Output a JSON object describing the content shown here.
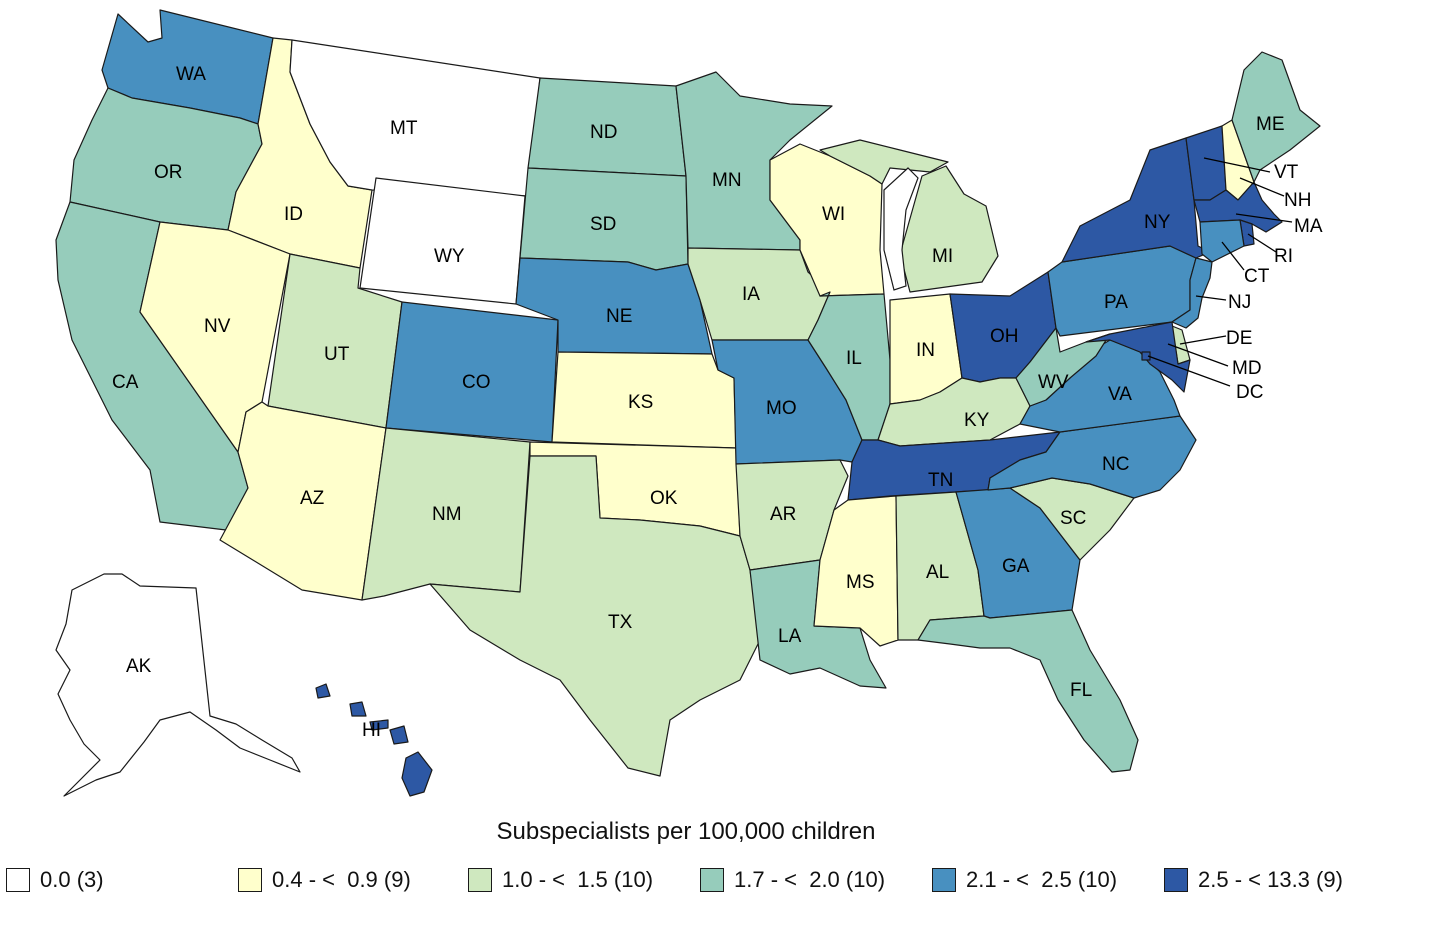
{
  "title": "Subspecialists per 100,000 children",
  "colors": {
    "c0": "#ffffff",
    "c1": "#ffffcc",
    "c2": "#cfe8bf",
    "c3": "#96ccbb",
    "c4": "#4890c0",
    "c5": "#2d58a4"
  },
  "legend": [
    {
      "label": "0.0 (3)",
      "color": "#ffffff"
    },
    {
      "label": "0.4 - <  0.9 (9)",
      "color": "#ffffcc"
    },
    {
      "label": "1.0 - <  1.5 (10)",
      "color": "#cfe8bf"
    },
    {
      "label": "1.7 - <  2.0 (10)",
      "color": "#96ccbb"
    },
    {
      "label": "2.1 - <  2.5 (10)",
      "color": "#4890c0"
    },
    {
      "label": "2.5 - < 13.3 (9)",
      "color": "#2d58a4"
    }
  ],
  "states": {
    "WA": {
      "label": "WA",
      "class": "2.1 - < 2.5"
    },
    "OR": {
      "label": "OR",
      "class": "1.7 - < 2.0"
    },
    "CA": {
      "label": "CA",
      "class": "1.7 - < 2.0"
    },
    "ID": {
      "label": "ID",
      "class": "0.4 - < 0.9"
    },
    "NV": {
      "label": "NV",
      "class": "0.4 - < 0.9"
    },
    "MT": {
      "label": "MT",
      "class": "0.0"
    },
    "WY": {
      "label": "WY",
      "class": "0.0"
    },
    "UT": {
      "label": "UT",
      "class": "1.0 - < 1.5"
    },
    "AZ": {
      "label": "AZ",
      "class": "0.4 - < 0.9"
    },
    "CO": {
      "label": "CO",
      "class": "2.1 - < 2.5"
    },
    "NM": {
      "label": "NM",
      "class": "1.0 - < 1.5"
    },
    "ND": {
      "label": "ND",
      "class": "1.7 - < 2.0"
    },
    "SD": {
      "label": "SD",
      "class": "1.7 - < 2.0"
    },
    "NE": {
      "label": "NE",
      "class": "2.1 - < 2.5"
    },
    "KS": {
      "label": "KS",
      "class": "0.4 - < 0.9"
    },
    "OK": {
      "label": "OK",
      "class": "0.4 - < 0.9"
    },
    "TX": {
      "label": "TX",
      "class": "1.0 - < 1.5"
    },
    "MN": {
      "label": "MN",
      "class": "1.7 - < 2.0"
    },
    "IA": {
      "label": "IA",
      "class": "1.0 - < 1.5"
    },
    "MO": {
      "label": "MO",
      "class": "2.1 - < 2.5"
    },
    "AR": {
      "label": "AR",
      "class": "1.0 - < 1.5"
    },
    "LA": {
      "label": "LA",
      "class": "1.7 - < 2.0"
    },
    "WI": {
      "label": "WI",
      "class": "0.4 - < 0.9"
    },
    "IL": {
      "label": "IL",
      "class": "1.7 - < 2.0"
    },
    "MS": {
      "label": "MS",
      "class": "0.4 - < 0.9"
    },
    "MI": {
      "label": "MI",
      "class": "1.0 - < 1.5"
    },
    "IN": {
      "label": "IN",
      "class": "0.4 - < 0.9"
    },
    "OH": {
      "label": "OH",
      "class": "2.5 - < 13.3"
    },
    "KY": {
      "label": "KY",
      "class": "1.0 - < 1.5"
    },
    "TN": {
      "label": "TN",
      "class": "2.5 - < 13.3"
    },
    "AL": {
      "label": "AL",
      "class": "1.0 - < 1.5"
    },
    "GA": {
      "label": "GA",
      "class": "2.1 - < 2.5"
    },
    "FL": {
      "label": "FL",
      "class": "1.7 - < 2.0"
    },
    "SC": {
      "label": "SC",
      "class": "1.0 - < 1.5"
    },
    "NC": {
      "label": "NC",
      "class": "2.1 - < 2.5"
    },
    "VA": {
      "label": "VA",
      "class": "2.1 - < 2.5"
    },
    "WV": {
      "label": "WV",
      "class": "1.7 - < 2.0"
    },
    "PA": {
      "label": "PA",
      "class": "2.1 - < 2.5"
    },
    "NY": {
      "label": "NY",
      "class": "2.5 - < 13.3"
    },
    "VT": {
      "label": "VT",
      "class": "2.5 - < 13.3"
    },
    "NH": {
      "label": "NH",
      "class": "0.4 - < 0.9"
    },
    "ME": {
      "label": "ME",
      "class": "1.7 - < 2.0"
    },
    "MA": {
      "label": "MA",
      "class": "2.5 - < 13.3"
    },
    "RI": {
      "label": "RI",
      "class": "2.5 - < 13.3"
    },
    "CT": {
      "label": "CT",
      "class": "2.1 - < 2.5"
    },
    "NJ": {
      "label": "NJ",
      "class": "2.1 - < 2.5"
    },
    "DE": {
      "label": "DE",
      "class": "1.0 - < 1.5"
    },
    "MD": {
      "label": "MD",
      "class": "2.5 - < 13.3"
    },
    "DC": {
      "label": "DC",
      "class": "2.5 - < 13.3"
    },
    "AK": {
      "label": "AK",
      "class": "0.0"
    },
    "HI": {
      "label": "HI",
      "class": "2.5 - < 13.3"
    }
  }
}
